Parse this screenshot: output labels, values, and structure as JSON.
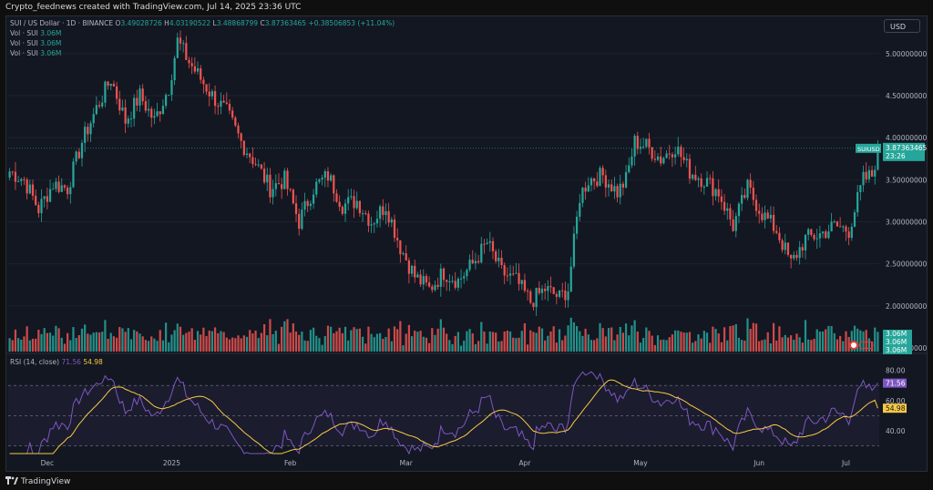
{
  "header": {
    "caption": "Crypto_feednews created with TradingView.com, Jul 14, 2025 23:36 UTC"
  },
  "legend": {
    "symbol": "SUI / US Dollar · 1D · BINANCE",
    "o_label": "O",
    "o_value": "3.49028726",
    "h_label": "H",
    "h_value": "4.03190522",
    "l_label": "L",
    "l_value": "3.48868799",
    "c_label": "C",
    "c_value": "3.87363465",
    "change": "+0.38506853 (+11.04%)",
    "vol_rows": [
      {
        "label": "Vol · SUI",
        "value": "3.06M"
      },
      {
        "label": "Vol · SUI",
        "value": "3.06M"
      },
      {
        "label": "Vol · SUI",
        "value": "3.06M"
      }
    ]
  },
  "toolbar": {
    "currency": "USD"
  },
  "price_axis": {
    "ticks": [
      "5.00000000",
      "4.50000000",
      "4.00000000",
      "3.50000000",
      "3.00000000",
      "2.50000000",
      "2.00000000",
      "1.50000000"
    ],
    "last_label_symbol": "SUIUSD",
    "last_label_price": "3.87363465",
    "last_label_timer": "23:26",
    "volume_labels": [
      "3.06M",
      "3.06M",
      "3.06M"
    ]
  },
  "rsi": {
    "title": "RSI (14, close)",
    "rsi_value": "71.56",
    "ma_value": "54.98",
    "ticks": [
      "80.00",
      "60.00",
      "40.00"
    ]
  },
  "time_axis": {
    "labels": [
      "Dec",
      "2025",
      "Feb",
      "Mar",
      "Apr",
      "May",
      "Jun",
      "Jul"
    ]
  },
  "branding": {
    "logo_text": "TradingView"
  },
  "colors": {
    "up": "#26a69a",
    "down": "#ef5350",
    "rsi": "#7e57c2",
    "rsi_ma": "#f7c844",
    "background": "#131722"
  },
  "chart_data": {
    "type": "candlestick",
    "title": "SUI / US Dollar · 1D · BINANCE",
    "ylim": [
      1.5,
      5.3
    ],
    "y_ticks": [
      1.5,
      2.0,
      2.5,
      3.0,
      3.5,
      4.0,
      4.5,
      5.0
    ],
    "x_labels": [
      "Dec",
      "2025",
      "Feb",
      "Mar",
      "Apr",
      "May",
      "Jun",
      "Jul"
    ],
    "last_close": 3.87363465,
    "close_anchors": [
      {
        "d": 0,
        "c": 3.6
      },
      {
        "d": 5,
        "c": 3.5
      },
      {
        "d": 10,
        "c": 3.15
      },
      {
        "d": 15,
        "c": 3.45
      },
      {
        "d": 20,
        "c": 3.4
      },
      {
        "d": 25,
        "c": 3.95
      },
      {
        "d": 30,
        "c": 4.35
      },
      {
        "d": 35,
        "c": 4.7
      },
      {
        "d": 40,
        "c": 4.2
      },
      {
        "d": 45,
        "c": 4.5
      },
      {
        "d": 50,
        "c": 4.2
      },
      {
        "d": 55,
        "c": 4.6
      },
      {
        "d": 58,
        "c": 5.15
      },
      {
        "d": 62,
        "c": 4.9
      },
      {
        "d": 66,
        "c": 4.7
      },
      {
        "d": 70,
        "c": 4.5
      },
      {
        "d": 75,
        "c": 4.3
      },
      {
        "d": 80,
        "c": 3.95
      },
      {
        "d": 85,
        "c": 3.7
      },
      {
        "d": 90,
        "c": 3.4
      },
      {
        "d": 95,
        "c": 3.5
      },
      {
        "d": 100,
        "c": 3.0
      },
      {
        "d": 105,
        "c": 3.4
      },
      {
        "d": 110,
        "c": 3.55
      },
      {
        "d": 115,
        "c": 3.2
      },
      {
        "d": 120,
        "c": 3.25
      },
      {
        "d": 125,
        "c": 3.0
      },
      {
        "d": 130,
        "c": 3.2
      },
      {
        "d": 135,
        "c": 2.7
      },
      {
        "d": 140,
        "c": 2.35
      },
      {
        "d": 145,
        "c": 2.2
      },
      {
        "d": 150,
        "c": 2.4
      },
      {
        "d": 155,
        "c": 2.3
      },
      {
        "d": 160,
        "c": 2.5
      },
      {
        "d": 165,
        "c": 2.75
      },
      {
        "d": 170,
        "c": 2.4
      },
      {
        "d": 175,
        "c": 2.3
      },
      {
        "d": 180,
        "c": 2.05
      },
      {
        "d": 185,
        "c": 2.2
      },
      {
        "d": 190,
        "c": 2.1
      },
      {
        "d": 193,
        "c": 2.2
      },
      {
        "d": 197,
        "c": 3.3
      },
      {
        "d": 200,
        "c": 3.5
      },
      {
        "d": 205,
        "c": 3.55
      },
      {
        "d": 210,
        "c": 3.35
      },
      {
        "d": 213,
        "c": 3.5
      },
      {
        "d": 216,
        "c": 3.95
      },
      {
        "d": 220,
        "c": 3.9
      },
      {
        "d": 225,
        "c": 3.75
      },
      {
        "d": 230,
        "c": 3.9
      },
      {
        "d": 235,
        "c": 3.6
      },
      {
        "d": 240,
        "c": 3.5
      },
      {
        "d": 245,
        "c": 3.35
      },
      {
        "d": 250,
        "c": 2.95
      },
      {
        "d": 255,
        "c": 3.4
      },
      {
        "d": 260,
        "c": 3.1
      },
      {
        "d": 265,
        "c": 2.9
      },
      {
        "d": 270,
        "c": 2.5
      },
      {
        "d": 275,
        "c": 2.8
      },
      {
        "d": 280,
        "c": 2.85
      },
      {
        "d": 285,
        "c": 2.95
      },
      {
        "d": 290,
        "c": 2.9
      },
      {
        "d": 295,
        "c": 3.5
      },
      {
        "d": 298,
        "c": 3.55
      },
      {
        "d": 300,
        "c": 3.87
      }
    ],
    "rsi_ylim": [
      25,
      90
    ],
    "rsi_bands": [
      70,
      50,
      30
    ],
    "rsi_last": 71.56,
    "rsi_ma_last": 54.98
  }
}
